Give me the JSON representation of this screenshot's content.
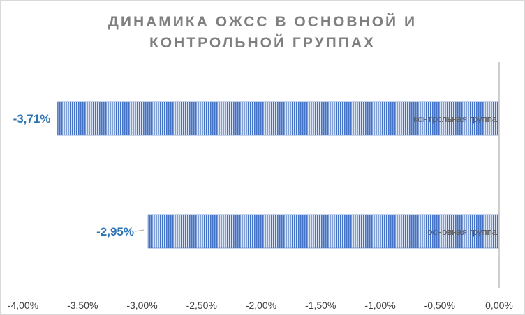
{
  "chart_data": {
    "type": "bar",
    "orientation": "horizontal",
    "title_lines": [
      "ДИНАМИКА ОЖСС В ОСНОВНОЙ И",
      "КОНТРОЛЬНОЙ ГРУППАХ"
    ],
    "categories": [
      "контрольная группа",
      "основная группа"
    ],
    "values": [
      -3.71,
      -2.95
    ],
    "value_labels": [
      "-3,71%",
      "-2,95%"
    ],
    "xlim": [
      -4.0,
      0.0
    ],
    "x_ticks": [
      -4.0,
      -3.5,
      -3.0,
      -2.5,
      -2.0,
      -1.5,
      -1.0,
      -0.5,
      0.0
    ],
    "x_tick_labels": [
      "-4,00%",
      "-3,50%",
      "-3,00%",
      "-2,50%",
      "-2,00%",
      "-1,50%",
      "-1,00%",
      "-0,50%",
      "0,00%"
    ],
    "grid": false,
    "legend": "none",
    "colors": {
      "bar_stripe": "#4472c4",
      "bar_fill": "#dae3f3",
      "value_label": "#2e75b6",
      "title": "#7f7f7f",
      "axis": "#bfbfbf",
      "tick_label": "#404040",
      "category_label": "#595959"
    }
  }
}
